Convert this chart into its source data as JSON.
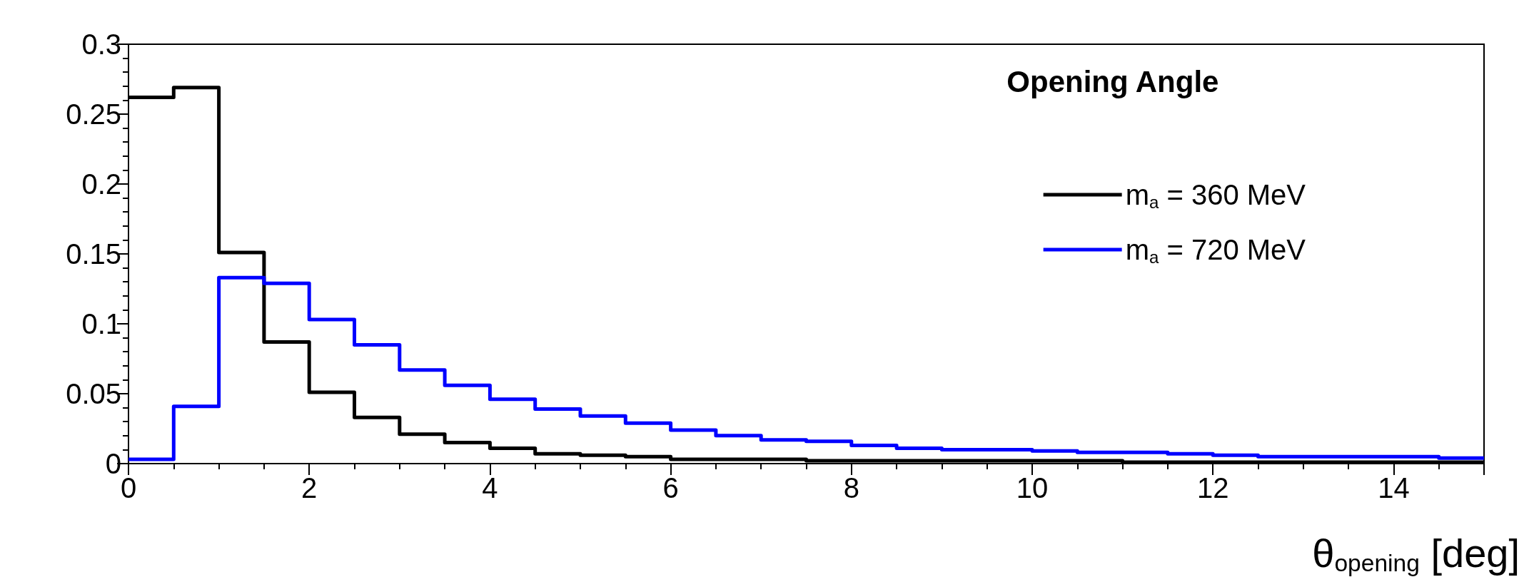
{
  "chart_data": {
    "type": "histogram",
    "legend_title": "Opening Angle",
    "xlabel": "θ$_{opening}$ [deg]",
    "bins": [
      0,
      0.5,
      1,
      1.5,
      2,
      2.5,
      3,
      3.5,
      4,
      4.5,
      5,
      5.5,
      6,
      6.5,
      7,
      7.5,
      8,
      8.5,
      9,
      9.5,
      10,
      10.5,
      11,
      11.5,
      12,
      12.5,
      13,
      13.5,
      14,
      14.5,
      15
    ],
    "series": [
      {
        "name": "m$_{a}$ = 360 MeV",
        "color": "#000000",
        "values": [
          0.262,
          0.269,
          0.151,
          0.087,
          0.051,
          0.033,
          0.021,
          0.015,
          0.011,
          0.007,
          0.006,
          0.005,
          0.003,
          0.003,
          0.003,
          0.002,
          0.002,
          0.002,
          0.002,
          0.002,
          0.002,
          0.002,
          0.001,
          0.001,
          0.001,
          0.001,
          0.001,
          0.001,
          0.001,
          0.001
        ]
      },
      {
        "name": "m$_{a}$ = 720 MeV",
        "color": "#0000ff",
        "values": [
          0.003,
          0.041,
          0.133,
          0.129,
          0.103,
          0.085,
          0.067,
          0.056,
          0.046,
          0.039,
          0.034,
          0.029,
          0.024,
          0.02,
          0.017,
          0.016,
          0.013,
          0.011,
          0.01,
          0.01,
          0.009,
          0.008,
          0.008,
          0.007,
          0.006,
          0.005,
          0.005,
          0.005,
          0.005,
          0.004
        ]
      }
    ],
    "xlim": [
      0,
      15
    ],
    "xticks": [
      0,
      2,
      4,
      6,
      8,
      10,
      12,
      14
    ],
    "ylim": [
      0,
      0.3
    ],
    "yticks": [
      0,
      0.05,
      0.1,
      0.15,
      0.2,
      0.25,
      0.3
    ],
    "legend": "top right",
    "grid": false
  }
}
